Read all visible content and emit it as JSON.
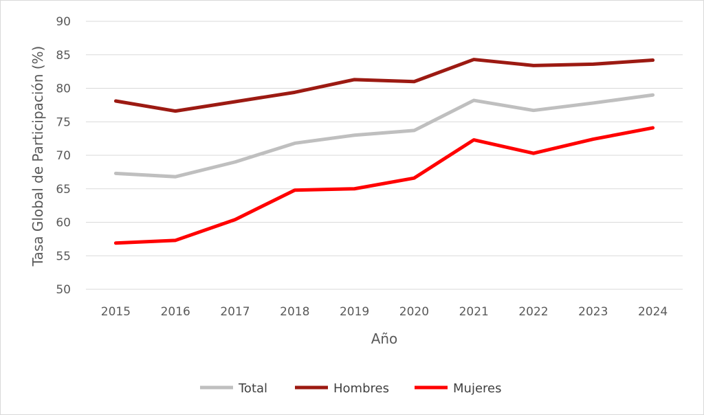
{
  "chart_data": {
    "type": "line",
    "title": "",
    "xlabel": "Año",
    "ylabel": "Tasa Global de Participación (%)",
    "ylim": [
      50,
      90
    ],
    "yticks": [
      50,
      55,
      60,
      65,
      70,
      75,
      80,
      85,
      90
    ],
    "categories": [
      "2015",
      "2016",
      "2017",
      "2018",
      "2019",
      "2020",
      "2021",
      "2022",
      "2023",
      "2024"
    ],
    "grid": true,
    "legend_position": "bottom",
    "series": [
      {
        "name": "Total",
        "color": "#bfbfbf",
        "values": [
          67.3,
          66.8,
          69.0,
          71.8,
          73.0,
          73.7,
          78.2,
          76.7,
          77.8,
          79.0
        ]
      },
      {
        "name": "Hombres",
        "color": "#9c1a12",
        "values": [
          78.1,
          76.6,
          78.0,
          79.4,
          81.3,
          81.0,
          84.3,
          83.4,
          83.6,
          84.2
        ]
      },
      {
        "name": "Mujeres",
        "color": "#ff0000",
        "values": [
          56.9,
          57.3,
          60.4,
          64.8,
          65.0,
          66.6,
          72.3,
          70.3,
          72.4,
          74.1
        ]
      }
    ]
  }
}
